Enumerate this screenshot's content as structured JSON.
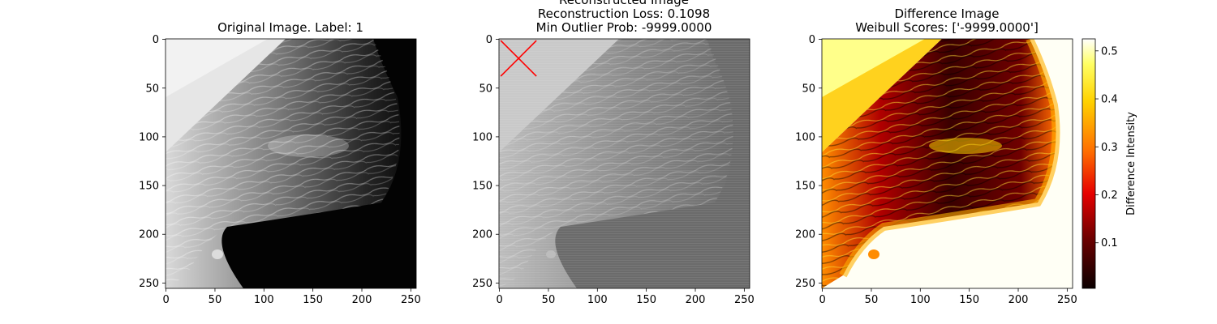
{
  "chart_data": {
    "type": "image",
    "image_size": [
      256,
      256
    ],
    "x_ticks": [
      0,
      50,
      100,
      150,
      200,
      250
    ],
    "y_ticks": [
      0,
      50,
      100,
      150,
      200,
      250
    ],
    "panels": [
      {
        "kind": "original",
        "title_lines": [
          "Original Image. Label: 1"
        ],
        "cmap": "gray"
      },
      {
        "kind": "reconstruction",
        "title_lines": [
          "Reconstructed Image",
          "Reconstruction Loss: 0.1098",
          "Min Outlier Prob: -9999.0000"
        ],
        "cmap": "gray",
        "marker": {
          "shape": "x",
          "color": "#ff0000",
          "x": 20,
          "y": 20
        }
      },
      {
        "kind": "difference",
        "title_lines": [
          "Difference Image",
          "Weibull Scores: ['-9999.0000']"
        ],
        "cmap": "hot"
      }
    ],
    "colorbar": {
      "label": "Difference Intensity",
      "ticks": [
        0.1,
        0.2,
        0.3,
        0.4,
        0.5
      ],
      "min": 0.005,
      "max": 0.525,
      "cmap": "hot"
    }
  }
}
